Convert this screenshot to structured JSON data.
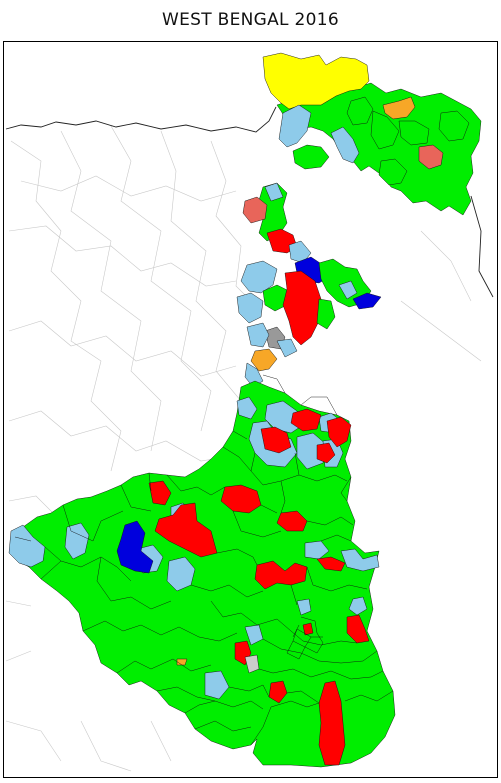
{
  "map": {
    "title": "WEST BENGAL 2016"
  },
  "party_colors": {
    "green": "#00ee00",
    "light_blue": "#8ecbea",
    "red": "#ff0000",
    "blue": "#0000dd",
    "yellow": "#ffff00",
    "orange": "#f7a727",
    "salmon": "#e8655a",
    "gray": "#999999",
    "light_gray": "#cccccc"
  }
}
